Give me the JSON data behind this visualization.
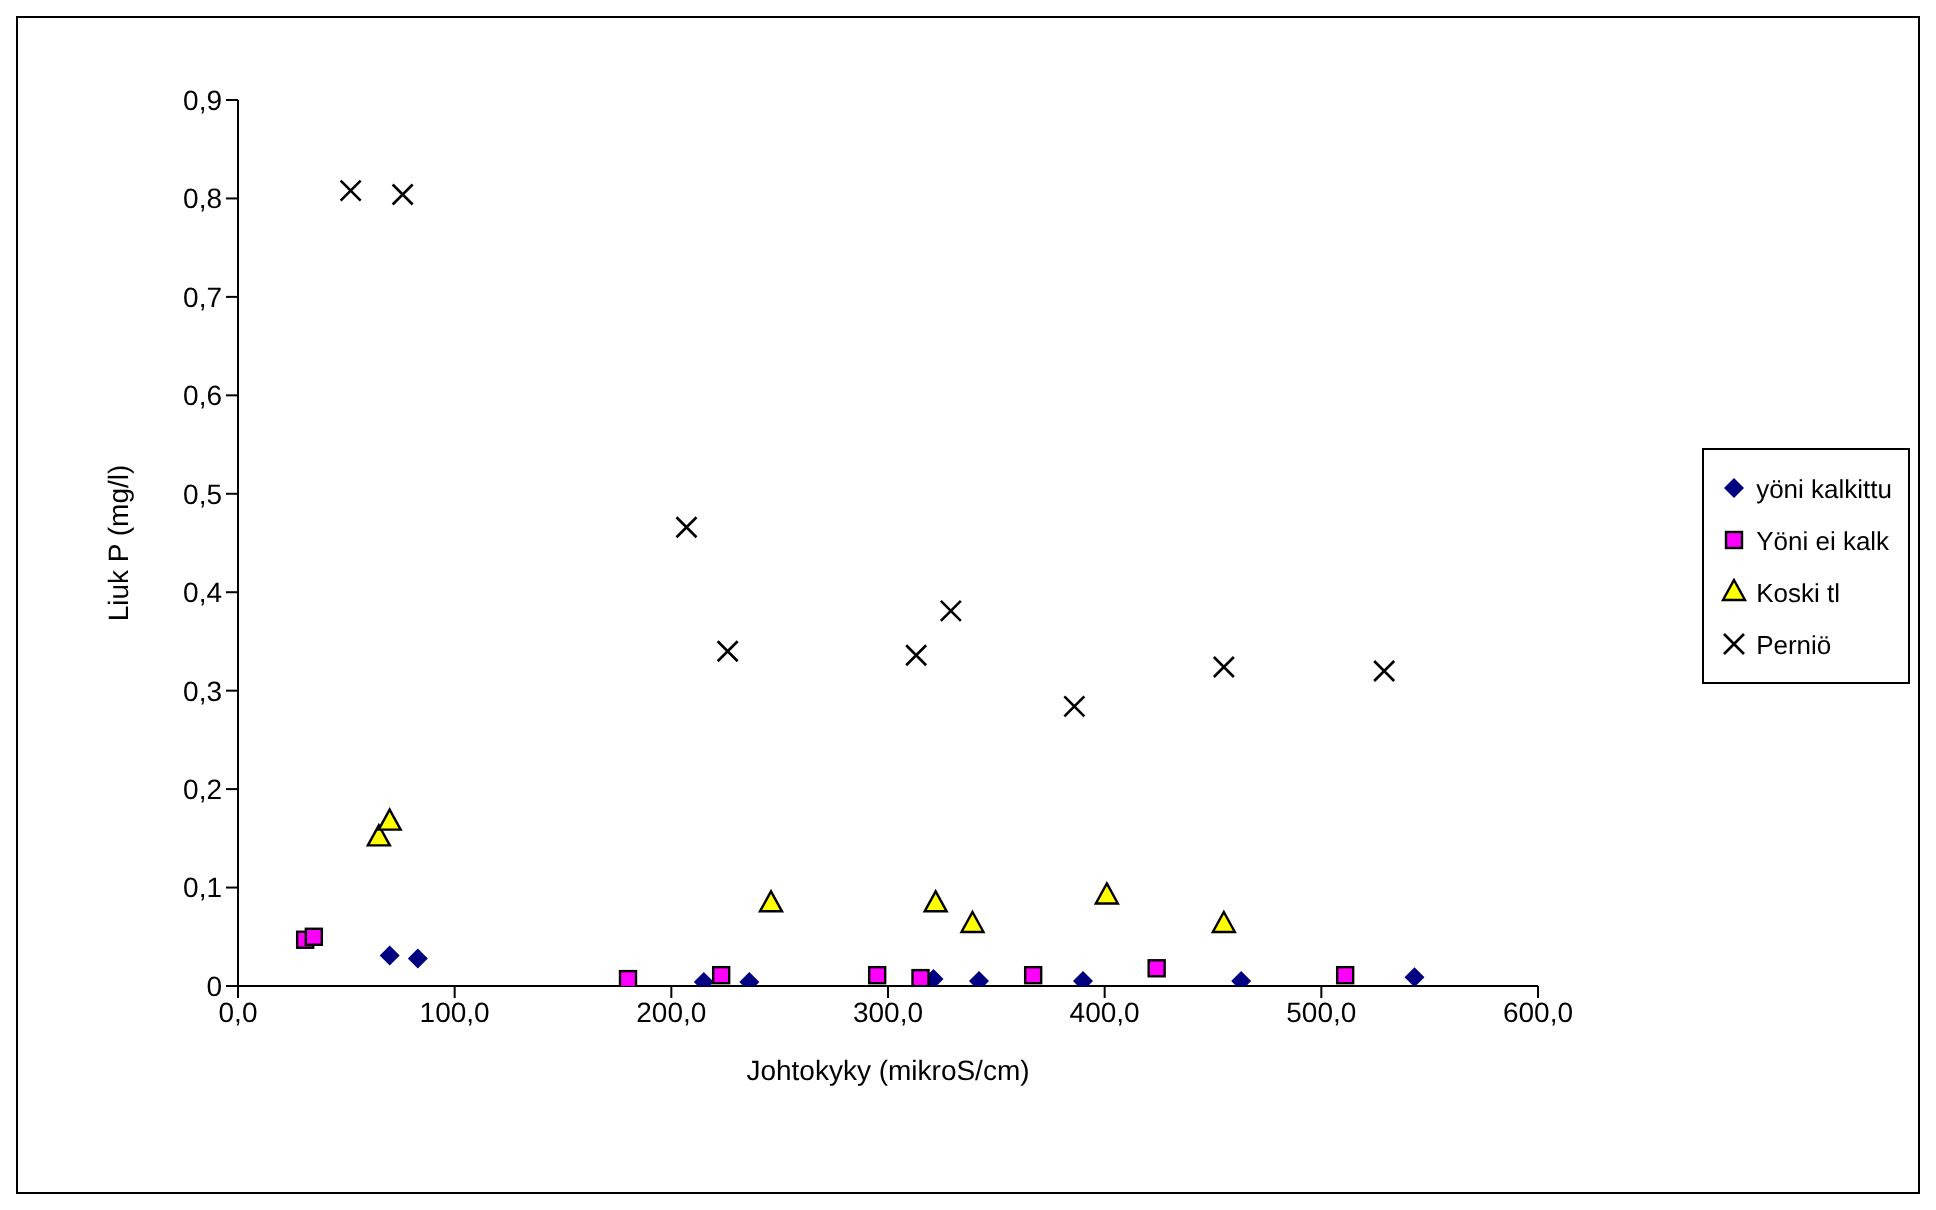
{
  "chart_data": {
    "type": "scatter",
    "xlabel": "Johtokyky (mikroS/cm)",
    "ylabel": "Liuk P (mg/l)",
    "xlim": [
      0,
      600
    ],
    "xticks": [
      {
        "value": 0,
        "label": "0,0"
      },
      {
        "value": 100,
        "label": "100,0"
      },
      {
        "value": 200,
        "label": "200,0"
      },
      {
        "value": 300,
        "label": "300,0"
      },
      {
        "value": 400,
        "label": "400,0"
      },
      {
        "value": 500,
        "label": "500,0"
      },
      {
        "value": 600,
        "label": "600,0"
      }
    ],
    "ylim": [
      0,
      0.9
    ],
    "yticks": [
      0,
      {
        "value": 0.1,
        "label": "0,1"
      },
      {
        "value": 0.2,
        "label": "0,2"
      },
      {
        "value": 0.3,
        "label": "0,3"
      },
      {
        "value": 0.4,
        "label": "0,4"
      },
      {
        "value": 0.5,
        "label": "0,5"
      },
      {
        "value": 0.6,
        "label": "0,6"
      },
      {
        "value": 0.7,
        "label": "0,7"
      },
      {
        "value": 0.8,
        "label": "0,8"
      },
      {
        "value": 0.9,
        "label": "0,9"
      }
    ],
    "grid": false,
    "legend": "right",
    "series": [
      {
        "name": "yöni kalkittu",
        "color": "#000080",
        "marker": "diamond",
        "x": [
          70,
          83,
          215,
          236,
          321,
          342,
          390,
          463,
          543
        ],
        "values": [
          0.031,
          0.028,
          0.004,
          0.004,
          0.007,
          0.005,
          0.005,
          0.005,
          0.009
        ]
      },
      {
        "name": "Yöni ei kalk",
        "color": "#ff00ff",
        "marker": "square",
        "x": [
          31,
          35,
          180,
          223,
          295,
          315,
          367,
          424,
          511
        ],
        "values": [
          0.047,
          0.05,
          0.007,
          0.011,
          0.011,
          0.008,
          0.011,
          0.018,
          0.011
        ]
      },
      {
        "name": "Koski tl",
        "color": "#ffff00",
        "marker": "triangle",
        "x": [
          65,
          70,
          246,
          322,
          339,
          401,
          455
        ],
        "values": [
          0.151,
          0.167,
          0.084,
          0.084,
          0.063,
          0.092,
          0.063
        ]
      },
      {
        "name": "Perniö",
        "color": "#000000",
        "marker": "cross",
        "x": [
          52,
          76,
          207,
          226,
          313,
          329,
          386,
          455,
          529
        ],
        "values": [
          0.808,
          0.804,
          0.466,
          0.34,
          0.336,
          0.381,
          0.284,
          0.324,
          0.32
        ]
      }
    ]
  }
}
